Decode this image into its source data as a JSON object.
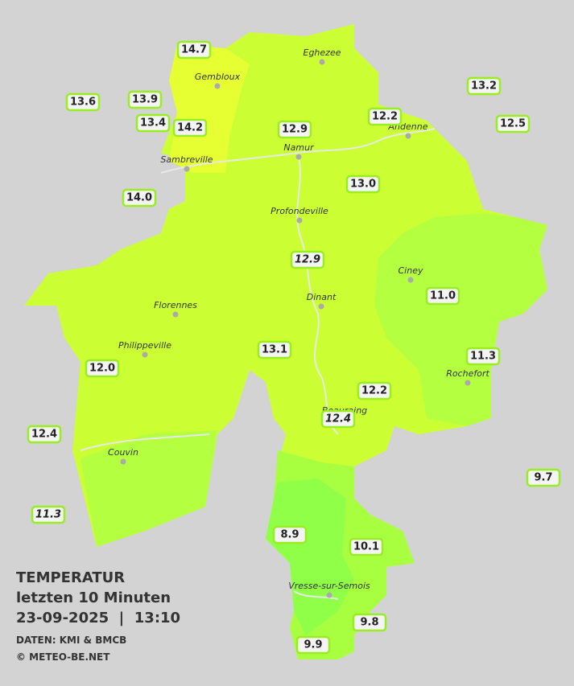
{
  "header": {
    "title": "TEMPERATUR",
    "subtitle": "letzten 10 Minuten",
    "datetime": "23-09-2025  |  13:10",
    "source": "DATEN: KMI & BMCB",
    "credit": "© METEO-BE.NET"
  },
  "cities": [
    "Eghezee",
    "Gembloux",
    "Andenne",
    "Namur",
    "Sambreville",
    "Profondeville",
    "Ciney",
    "Florennes",
    "Dinant",
    "Philippeville",
    "Rochefort",
    "Beauraing",
    "Couvin",
    "Vresse-sur-Semois"
  ],
  "stations": [
    "14.7",
    "13.6",
    "13.9",
    "13.4",
    "14.2",
    "12.9",
    "12.2",
    "13.2",
    "12.5",
    "14.0",
    "13.0",
    "12.9",
    "11.0",
    "13.1",
    "12.0",
    "11.3",
    "12.2",
    "12.4",
    "12.4",
    "9.7",
    "11.3",
    "8.9",
    "10.1",
    "9.8",
    "9.9"
  ]
}
